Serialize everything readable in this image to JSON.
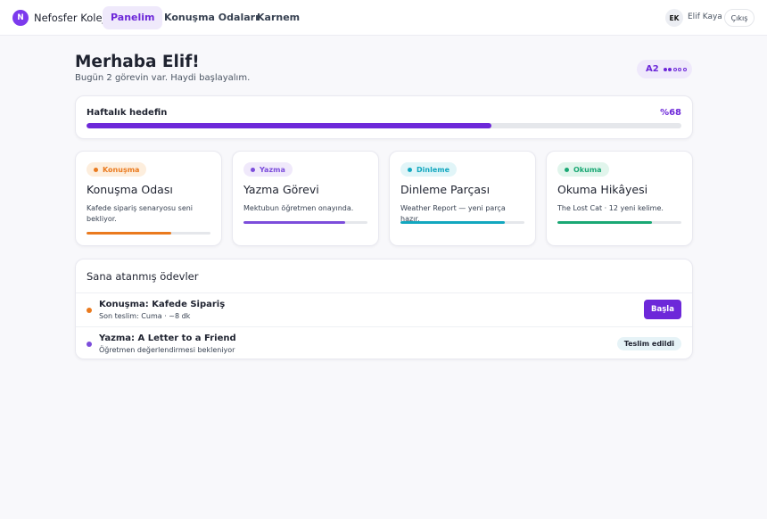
{
  "brand": {
    "logo_letter": "N",
    "name": "Nefosfer Koleji"
  },
  "nav": {
    "tabs": [
      {
        "label": "Panelim"
      },
      {
        "label": "Konuşma Odaları"
      },
      {
        "label": "Karnem"
      }
    ]
  },
  "user": {
    "initials": "EK",
    "name": "Elif Kaya",
    "logout_label": "Çıkış"
  },
  "greeting": {
    "title": "Merhaba Elif!",
    "subtitle": "Bugün 2 görevin var. Haydi başlayalım."
  },
  "level": {
    "label": "A2",
    "filled_dots": 2,
    "total_dots": 5,
    "accent": "#6d28d9"
  },
  "weekly_goal": {
    "label": "Haftalık hedefin",
    "percent_label": "%68",
    "progress": 0.68,
    "color": "#6d28d9"
  },
  "skills": [
    {
      "chip": "Konuşma",
      "title": "Konuşma Odası",
      "desc": "Kafede sipariş senaryosu seni bekliyor.",
      "progress": 0.68,
      "color": "#ea7a1e",
      "chip_bg": "#fdeedd"
    },
    {
      "chip": "Yazma",
      "title": "Yazma Görevi",
      "desc": "Mektubun öğretmen onayında.",
      "progress": 0.82,
      "color": "#7c4ddb",
      "chip_bg": "#f0e9fb"
    },
    {
      "chip": "Dinleme",
      "title": "Dinleme Parçası",
      "desc": "Weather Report — yeni parça hazır.",
      "progress": 0.84,
      "color": "#12a7bf",
      "chip_bg": "#e1f5f8"
    },
    {
      "chip": "Okuma",
      "title": "Okuma Hikâyesi",
      "desc": "The Lost Cat · 12 yeni kelime.",
      "progress": 0.76,
      "color": "#1aa874",
      "chip_bg": "#e1f5ec"
    }
  ],
  "assignments": {
    "title": "Sana atanmış ödevler",
    "items": [
      {
        "title": "Konuşma: Kafede Sipariş",
        "subtitle": "Son teslim: Cuma · ~8 dk",
        "action_label": "Başla",
        "dot_color": "#ea7a1e"
      },
      {
        "title": "Yazma: A Letter to a Friend",
        "subtitle": "Öğretmen değerlendirmesi bekleniyor",
        "status_label": "Teslim edildi",
        "dot_color": "#7c4ddb"
      }
    ]
  }
}
